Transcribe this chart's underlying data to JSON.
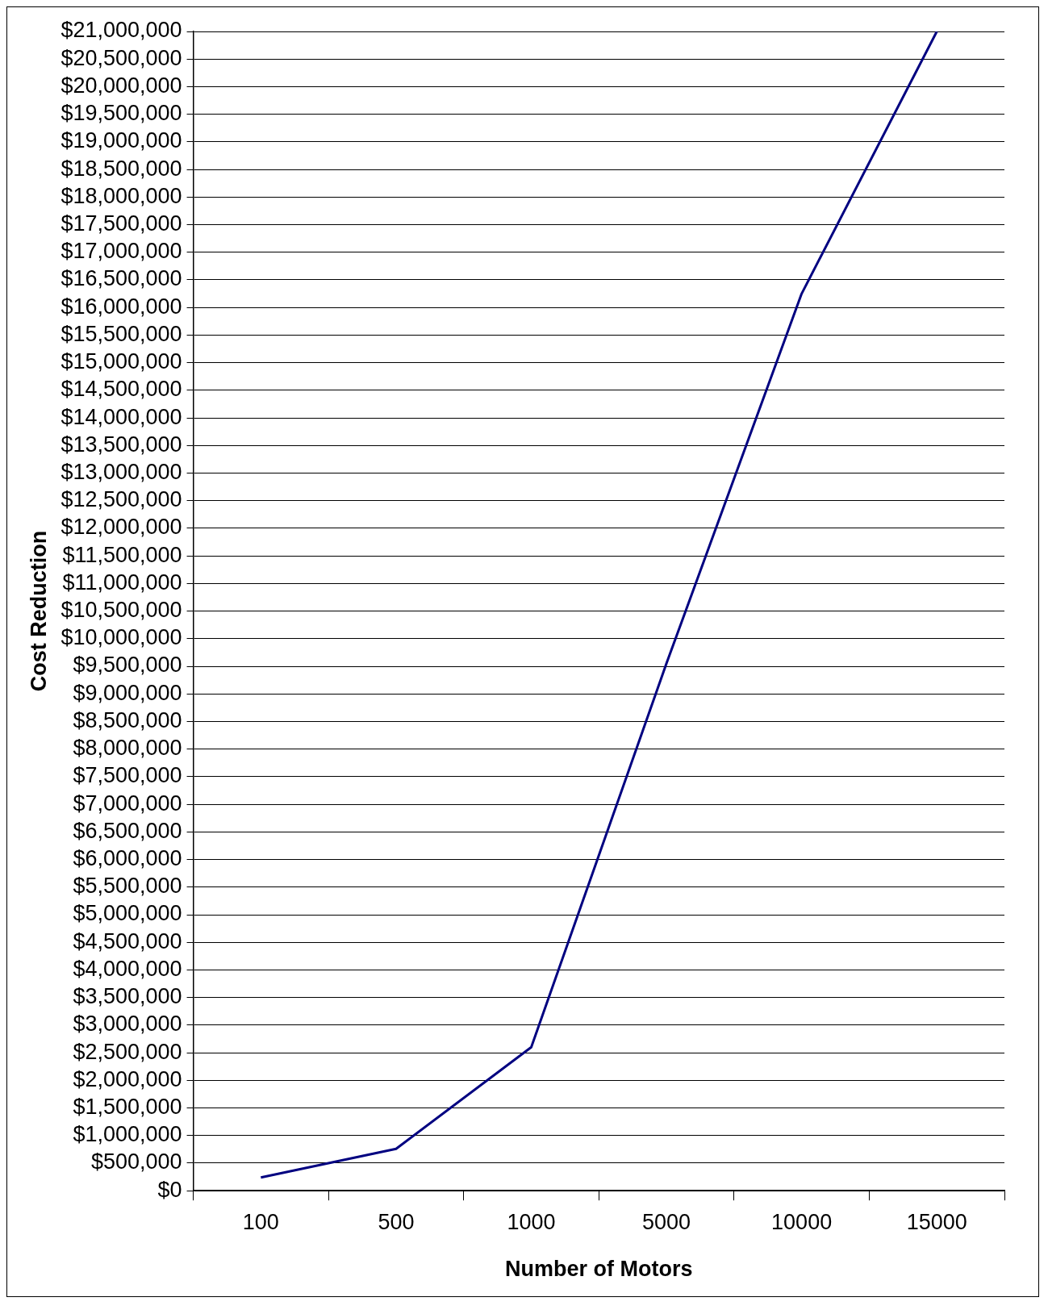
{
  "chart_data": {
    "type": "line",
    "xlabel": "Number of Motors",
    "ylabel": "Cost Reduction",
    "categories": [
      "100",
      "500",
      "1000",
      "5000",
      "10000",
      "15000"
    ],
    "series": [
      {
        "color": "#000080",
        "values": [
          240000,
          760000,
          2600000,
          9550000,
          16250000,
          21000000
        ]
      }
    ],
    "ylim": [
      0,
      21000000
    ],
    "yticks": [
      {
        "value": 0,
        "label": "$0"
      },
      {
        "value": 500000,
        "label": "$500,000"
      },
      {
        "value": 1000000,
        "label": "$1,000,000"
      },
      {
        "value": 1500000,
        "label": "$1,500,000"
      },
      {
        "value": 2000000,
        "label": "$2,000,000"
      },
      {
        "value": 2500000,
        "label": "$2,500,000"
      },
      {
        "value": 3000000,
        "label": "$3,000,000"
      },
      {
        "value": 3500000,
        "label": "$3,500,000"
      },
      {
        "value": 4000000,
        "label": "$4,000,000"
      },
      {
        "value": 4500000,
        "label": "$4,500,000"
      },
      {
        "value": 5000000,
        "label": "$5,000,000"
      },
      {
        "value": 5500000,
        "label": "$5,500,000"
      },
      {
        "value": 6000000,
        "label": "$6,000,000"
      },
      {
        "value": 6500000,
        "label": "$6,500,000"
      },
      {
        "value": 7000000,
        "label": "$7,000,000"
      },
      {
        "value": 7500000,
        "label": "$7,500,000"
      },
      {
        "value": 8000000,
        "label": "$8,000,000"
      },
      {
        "value": 8500000,
        "label": "$8,500,000"
      },
      {
        "value": 9000000,
        "label": "$9,000,000"
      },
      {
        "value": 9500000,
        "label": "$9,500,000"
      },
      {
        "value": 10000000,
        "label": "$10,000,000"
      },
      {
        "value": 10500000,
        "label": "$10,500,000"
      },
      {
        "value": 11000000,
        "label": "$11,000,000"
      },
      {
        "value": 11500000,
        "label": "$11,500,000"
      },
      {
        "value": 12000000,
        "label": "$12,000,000"
      },
      {
        "value": 12500000,
        "label": "$12,500,000"
      },
      {
        "value": 13000000,
        "label": "$13,000,000"
      },
      {
        "value": 13500000,
        "label": "$13,500,000"
      },
      {
        "value": 14000000,
        "label": "$14,000,000"
      },
      {
        "value": 14500000,
        "label": "$14,500,000"
      },
      {
        "value": 15000000,
        "label": "$15,000,000"
      },
      {
        "value": 15500000,
        "label": "$15,500,000"
      },
      {
        "value": 16000000,
        "label": "$16,000,000"
      },
      {
        "value": 16500000,
        "label": "$16,500,000"
      },
      {
        "value": 17000000,
        "label": "$17,000,000"
      },
      {
        "value": 17500000,
        "label": "$17,500,000"
      },
      {
        "value": 18000000,
        "label": "$18,000,000"
      },
      {
        "value": 18500000,
        "label": "$18,500,000"
      },
      {
        "value": 19000000,
        "label": "$19,000,000"
      },
      {
        "value": 19500000,
        "label": "$19,500,000"
      },
      {
        "value": 20000000,
        "label": "$20,000,000"
      },
      {
        "value": 20500000,
        "label": "$20,500,000"
      },
      {
        "value": 21000000,
        "label": "$21,000,000"
      }
    ],
    "grid": "y",
    "legend": false,
    "marker": "none",
    "line_style": "solid"
  }
}
